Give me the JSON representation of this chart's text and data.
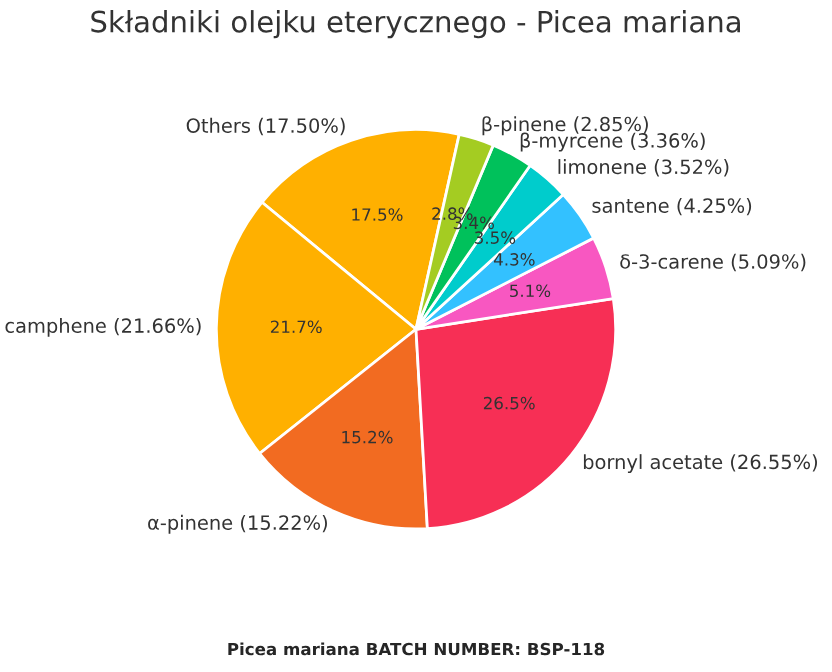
{
  "chart_data": {
    "type": "pie",
    "title": "Składniki olejku eterycznego - Picea mariana",
    "categories": [
      "Others (17.50%)",
      "camphene (21.66%)",
      "α-pinene (15.22%)",
      "bornyl acetate (26.55%)",
      "δ-3-carene (5.09%)",
      "santene (4.25%)",
      "limonene (3.52%)",
      "β-myrcene (3.36%)",
      "β-pinene (2.85%)"
    ],
    "values": [
      17.5,
      21.66,
      15.22,
      26.55,
      5.09,
      4.25,
      3.52,
      3.36,
      2.85
    ],
    "value_labels": [
      "17.5%",
      "21.7%",
      "15.2%",
      "26.5%",
      "5.1%",
      "4.3%",
      "3.5%",
      "3.4%",
      "2.8%"
    ],
    "colors": [
      "#ffb000",
      "#ffb000",
      "#f26b21",
      "#f72f55",
      "#f857c1",
      "#33c1ff",
      "#00cccc",
      "#00c15b",
      "#a4cc22"
    ],
    "annotations": [
      "Picea mariana BATCH NUMBER: BSP-118"
    ]
  }
}
